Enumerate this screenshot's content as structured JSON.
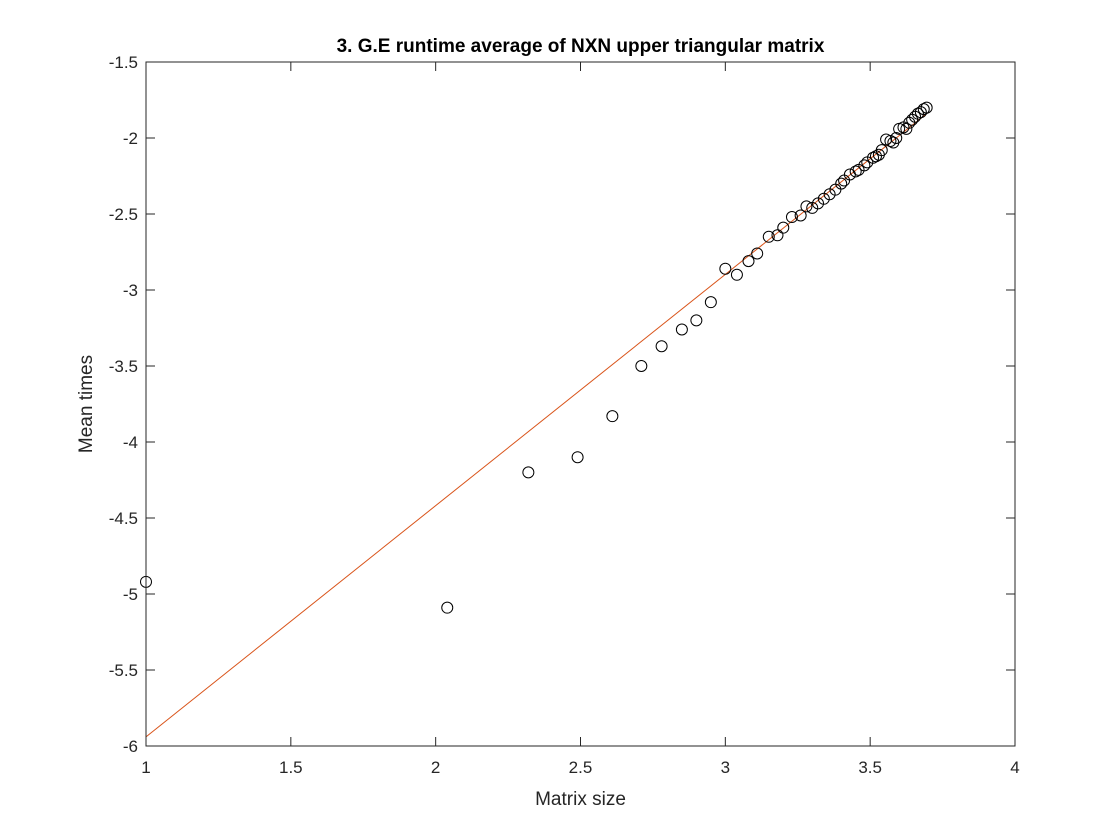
{
  "chart_data": {
    "type": "scatter",
    "title": "3. G.E runtime average of NXN  upper triangular matrix",
    "xlabel": "Matrix size",
    "ylabel": "Mean times",
    "xlim": [
      1,
      4
    ],
    "ylim": [
      -6,
      -1.5
    ],
    "xticks": [
      1,
      1.5,
      2,
      2.5,
      3,
      3.5,
      4
    ],
    "yticks": [
      -6,
      -5.5,
      -5,
      -4.5,
      -4,
      -3.5,
      -3,
      -2.5,
      -2,
      -1.5
    ],
    "xtick_labels": [
      "1",
      "1.5",
      "2",
      "2.5",
      "3",
      "3.5",
      "4"
    ],
    "ytick_labels": [
      "-6",
      "-5.5",
      "-5",
      "-4.5",
      "-4",
      "-3.5",
      "-3",
      "-2.5",
      "-2",
      "-1.5"
    ],
    "grid": false,
    "legend": "none",
    "colors": {
      "markers": "#000000",
      "fit_line": "#d95319",
      "axes": "#262626"
    },
    "series": [
      {
        "kind": "scatter-markers",
        "marker": "open-circle",
        "x": [
          1.0,
          2.04,
          2.32,
          2.49,
          2.61,
          2.71,
          2.78,
          2.85,
          2.9,
          2.95,
          3.0,
          3.04,
          3.08,
          3.11,
          3.15,
          3.18,
          3.2,
          3.23,
          3.26,
          3.28,
          3.3,
          3.32,
          3.34,
          3.36,
          3.38,
          3.4,
          3.41,
          3.43,
          3.45,
          3.46,
          3.48,
          3.49,
          3.51,
          3.52,
          3.53,
          3.54,
          3.555,
          3.57,
          3.58,
          3.59,
          3.6,
          3.615,
          3.625,
          3.635,
          3.645,
          3.655,
          3.665,
          3.675,
          3.685,
          3.695
        ],
        "y": [
          -4.92,
          -5.09,
          -4.2,
          -4.1,
          -3.83,
          -3.5,
          -3.37,
          -3.26,
          -3.2,
          -3.08,
          -2.86,
          -2.9,
          -2.81,
          -2.76,
          -2.65,
          -2.64,
          -2.59,
          -2.52,
          -2.51,
          -2.45,
          -2.46,
          -2.43,
          -2.4,
          -2.37,
          -2.34,
          -2.3,
          -2.28,
          -2.24,
          -2.22,
          -2.21,
          -2.18,
          -2.16,
          -2.13,
          -2.12,
          -2.11,
          -2.08,
          -2.01,
          -2.02,
          -2.03,
          -2.0,
          -1.94,
          -1.93,
          -1.94,
          -1.9,
          -1.88,
          -1.86,
          -1.84,
          -1.83,
          -1.81,
          -1.8
        ]
      },
      {
        "kind": "fit-line",
        "x": [
          1.0,
          3.695
        ],
        "y": [
          -5.94,
          -1.84
        ]
      }
    ]
  }
}
